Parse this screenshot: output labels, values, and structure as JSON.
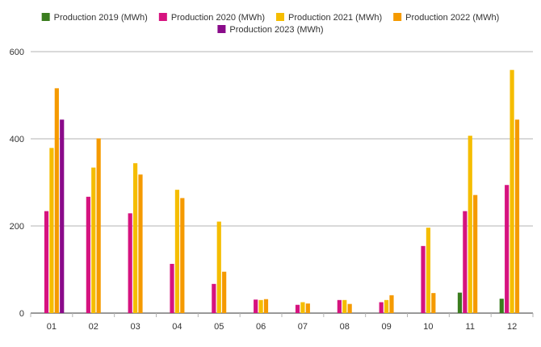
{
  "chart_data": {
    "type": "bar",
    "categories": [
      "01",
      "02",
      "03",
      "04",
      "05",
      "06",
      "07",
      "08",
      "09",
      "10",
      "11",
      "12"
    ],
    "series": [
      {
        "name": "Production 2019 (MWh)",
        "color": "#3a7d1e",
        "values": [
          null,
          null,
          null,
          null,
          null,
          null,
          null,
          null,
          null,
          null,
          47,
          33
        ]
      },
      {
        "name": "Production 2020 (MWh)",
        "color": "#d6137f",
        "values": [
          234,
          267,
          229,
          113,
          67,
          31,
          19,
          30,
          25,
          154,
          234,
          294
        ]
      },
      {
        "name": "Production 2021 (MWh)",
        "color": "#f5bd00",
        "values": [
          379,
          334,
          344,
          283,
          210,
          30,
          25,
          30,
          30,
          196,
          407,
          558
        ]
      },
      {
        "name": "Production 2022 (MWh)",
        "color": "#f59a00",
        "values": [
          516,
          401,
          318,
          264,
          95,
          32,
          22,
          21,
          41,
          46,
          271,
          444
        ]
      },
      {
        "name": "Production 2023 (MWh)",
        "color": "#8a0b8a",
        "values": [
          444,
          null,
          null,
          null,
          null,
          null,
          null,
          null,
          null,
          null,
          null,
          null
        ]
      }
    ],
    "yticks": [
      "0",
      "200",
      "400",
      "600"
    ],
    "ylim": [
      0,
      600
    ],
    "grid": true,
    "legend_position": "top"
  }
}
